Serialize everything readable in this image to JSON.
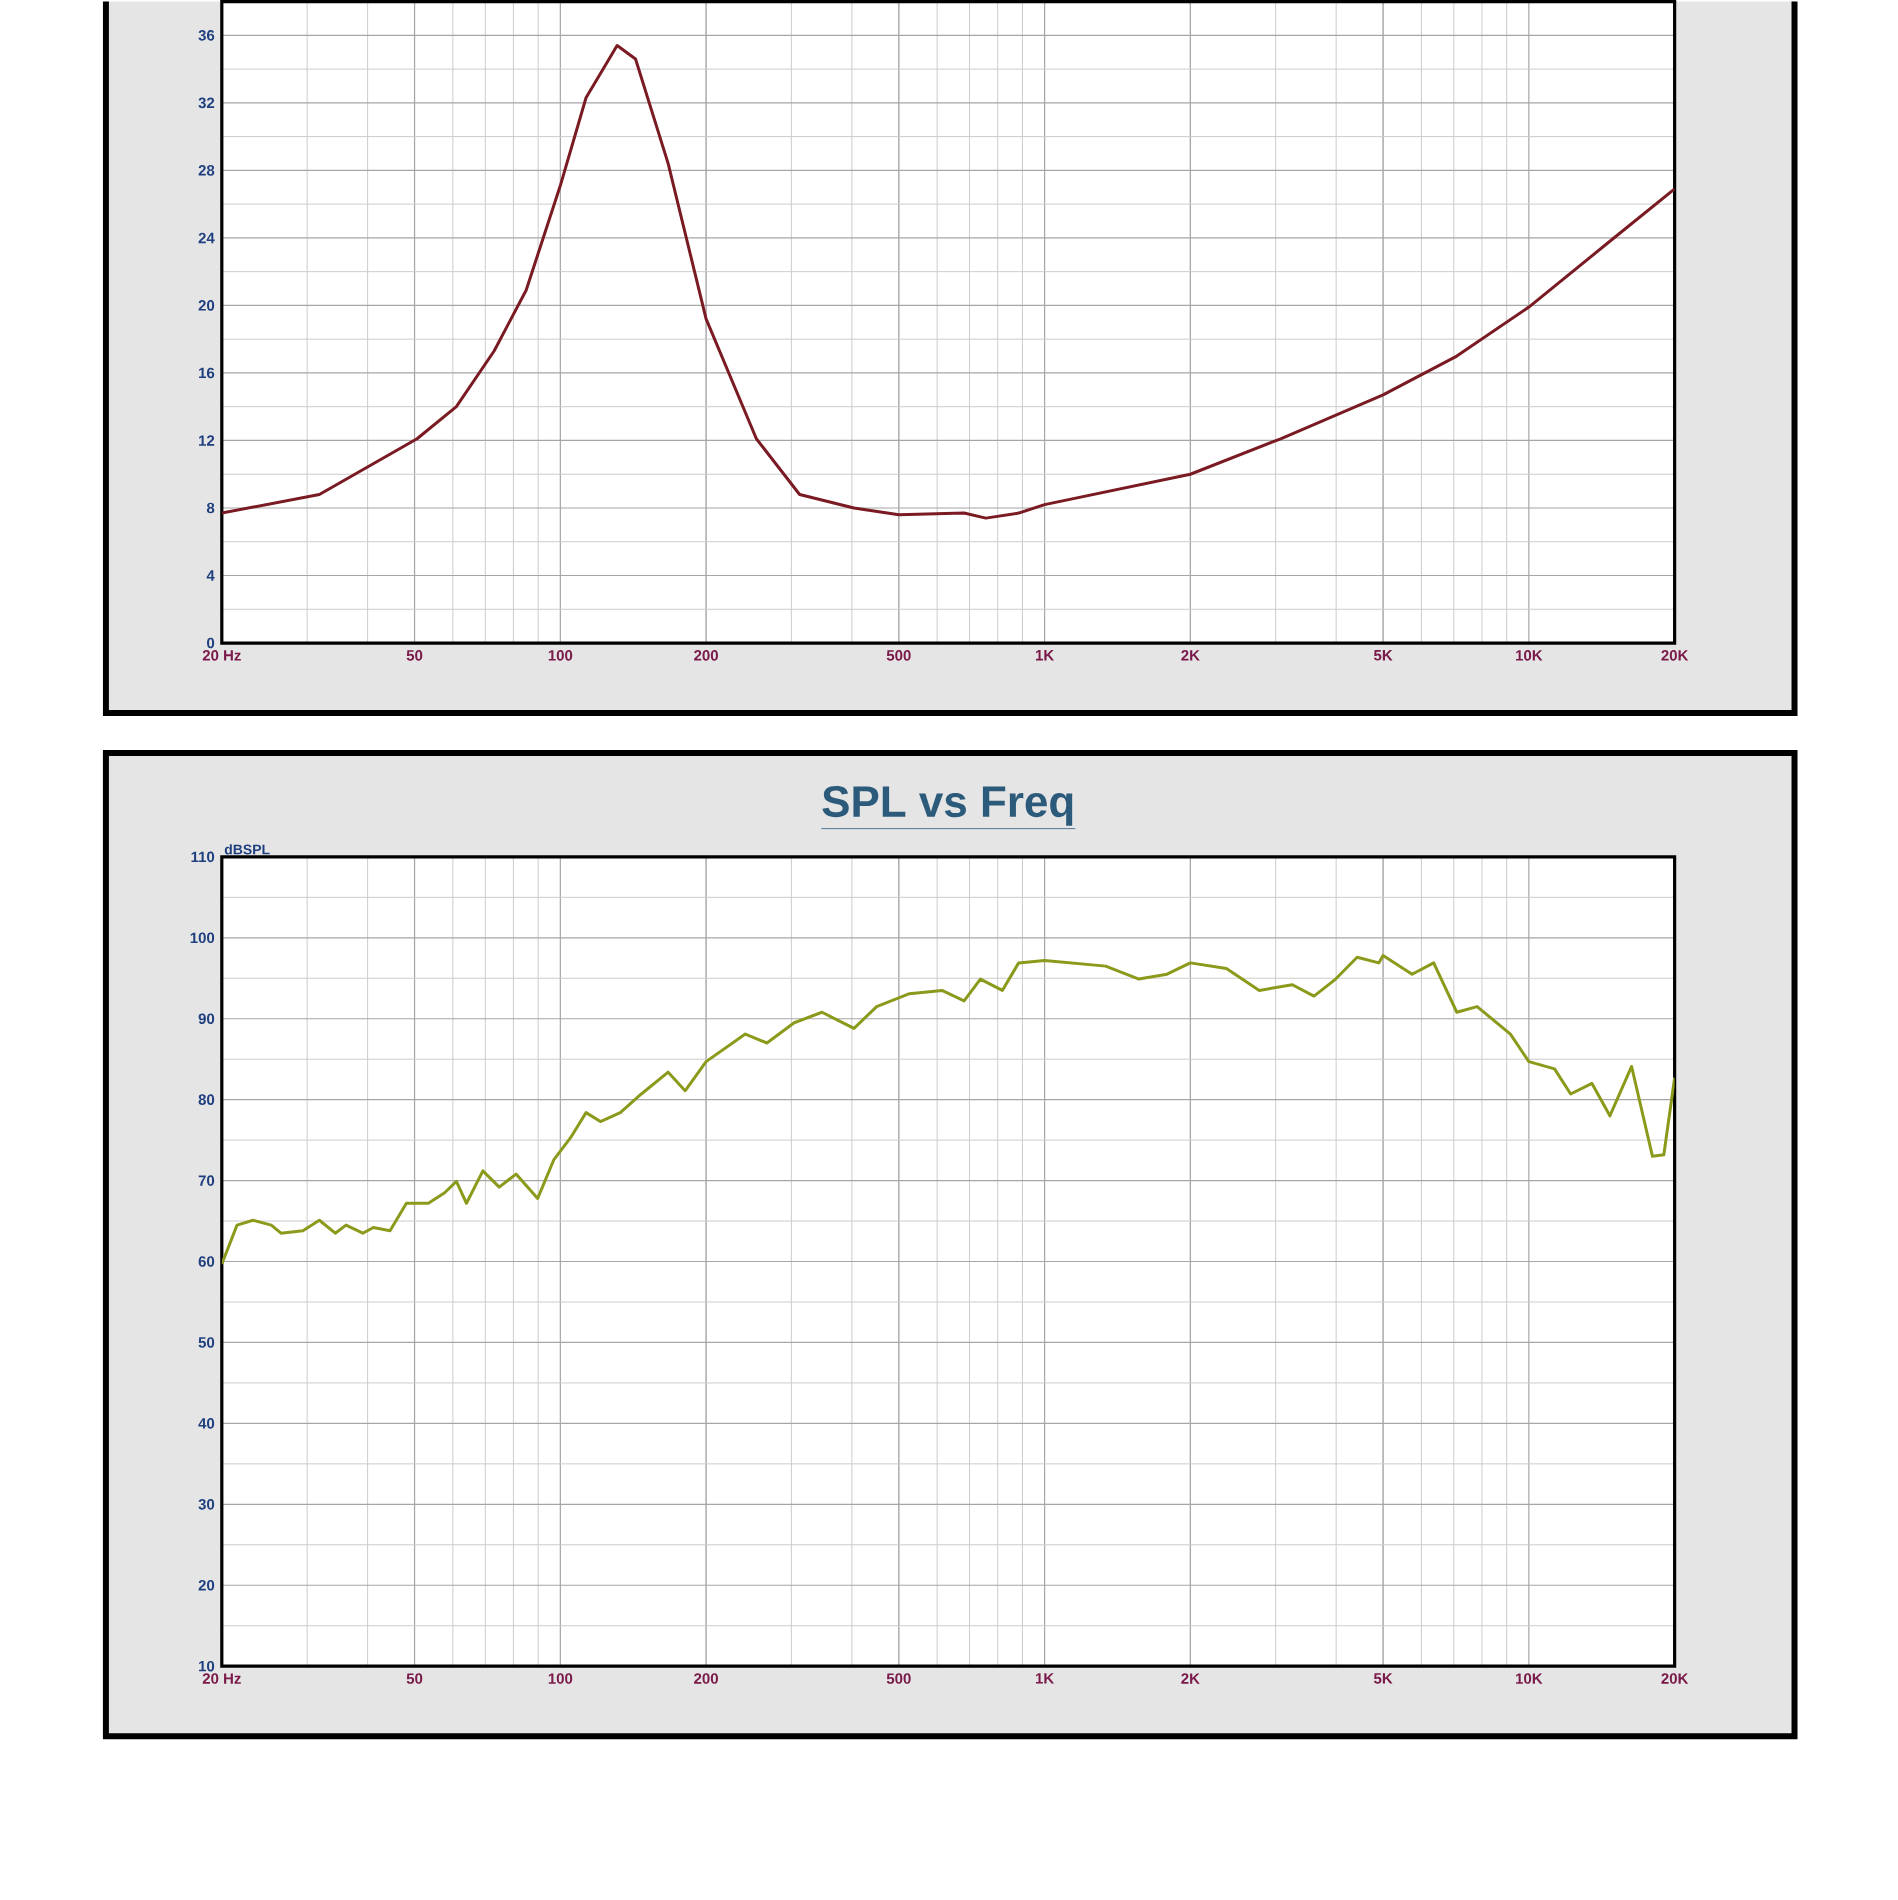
{
  "chart_data": [
    {
      "type": "line",
      "log": "x",
      "grid": true,
      "color": "#7a1a22",
      "x": [
        20,
        31.8,
        50.6,
        61,
        73,
        85,
        100,
        113,
        131,
        143,
        167,
        200,
        254,
        312,
        404,
        500,
        682,
        756,
        884,
        1000,
        2000,
        3072,
        5000,
        7100,
        10000,
        14700,
        20000
      ],
      "values": [
        7.7,
        8.8,
        12.1,
        14.0,
        17.3,
        20.9,
        27.1,
        32.3,
        35.4,
        34.6,
        28.4,
        19.2,
        12.1,
        8.8,
        8.0,
        7.6,
        7.7,
        7.4,
        7.7,
        8.2,
        10.0,
        12.1,
        14.7,
        17.0,
        19.9,
        23.8,
        26.9
      ],
      "xlim": [
        20,
        20000
      ],
      "xticks": [
        {
          "value": 20,
          "label": "20  Hz"
        },
        50,
        100,
        200,
        500,
        {
          "value": 1000,
          "label": "1K"
        },
        {
          "value": 2000,
          "label": "2K"
        },
        {
          "value": 5000,
          "label": "5K"
        },
        {
          "value": 10000,
          "label": "10K"
        },
        {
          "value": 20000,
          "label": "20K"
        }
      ],
      "ylim": [
        0,
        38
      ],
      "yticks": [
        0,
        4,
        8,
        12,
        16,
        20,
        24,
        28,
        32,
        36
      ]
    },
    {
      "type": "line",
      "log": "x",
      "grid": true,
      "color": "#8c9a1c",
      "title": "SPL vs Freq",
      "ylabel": "dBSPL",
      "x": [
        20,
        21.5,
        23.2,
        25.3,
        26.5,
        29.4,
        31.8,
        34.3,
        36.1,
        39.1,
        41.1,
        44.5,
        48.1,
        53.4,
        57.7,
        61,
        64,
        69.2,
        74.8,
        81,
        89.8,
        97,
        105,
        113,
        121,
        133,
        147,
        167,
        181,
        200,
        241,
        267,
        304,
        347,
        404,
        450,
        526,
        614,
        682,
        737,
        818,
        884,
        1000,
        1337,
        1566,
        1790,
        2000,
        2374,
        2776,
        3248,
        3600,
        3992,
        4420,
        4900,
        5000,
        5740,
        6360,
        7100,
        7820,
        9160,
        10000,
        11300,
        12200,
        13500,
        14700,
        16300,
        18000,
        19000,
        20000
      ],
      "values": [
        59.7,
        64.5,
        65.1,
        64.5,
        63.5,
        63.8,
        65.1,
        63.5,
        64.5,
        63.5,
        64.2,
        63.8,
        67.2,
        67.2,
        68.5,
        69.9,
        67.2,
        71.2,
        69.2,
        70.8,
        67.8,
        72.6,
        75.3,
        78.4,
        77.3,
        78.4,
        80.7,
        83.4,
        81.1,
        84.7,
        88.1,
        87.0,
        89.5,
        90.8,
        88.8,
        91.5,
        93.1,
        93.5,
        92.2,
        94.9,
        93.5,
        96.9,
        97.2,
        96.5,
        94.9,
        95.5,
        96.9,
        96.2,
        93.5,
        94.2,
        92.8,
        94.9,
        97.6,
        96.9,
        97.8,
        95.5,
        96.9,
        90.8,
        91.5,
        88.1,
        84.7,
        83.8,
        80.7,
        82.0,
        78.0,
        84.1,
        73.0,
        73.2,
        82.7
      ],
      "xlim": [
        20,
        20000
      ],
      "xticks": [
        {
          "value": 20,
          "label": "20  Hz"
        },
        50,
        100,
        200,
        500,
        {
          "value": 1000,
          "label": "1K"
        },
        {
          "value": 2000,
          "label": "2K"
        },
        {
          "value": 5000,
          "label": "5K"
        },
        {
          "value": 10000,
          "label": "10K"
        },
        {
          "value": 20000,
          "label": "20K"
        }
      ],
      "ylim": [
        10,
        110
      ],
      "yticks": [
        10,
        20,
        30,
        40,
        50,
        60,
        70,
        80,
        90,
        100,
        110
      ]
    }
  ]
}
